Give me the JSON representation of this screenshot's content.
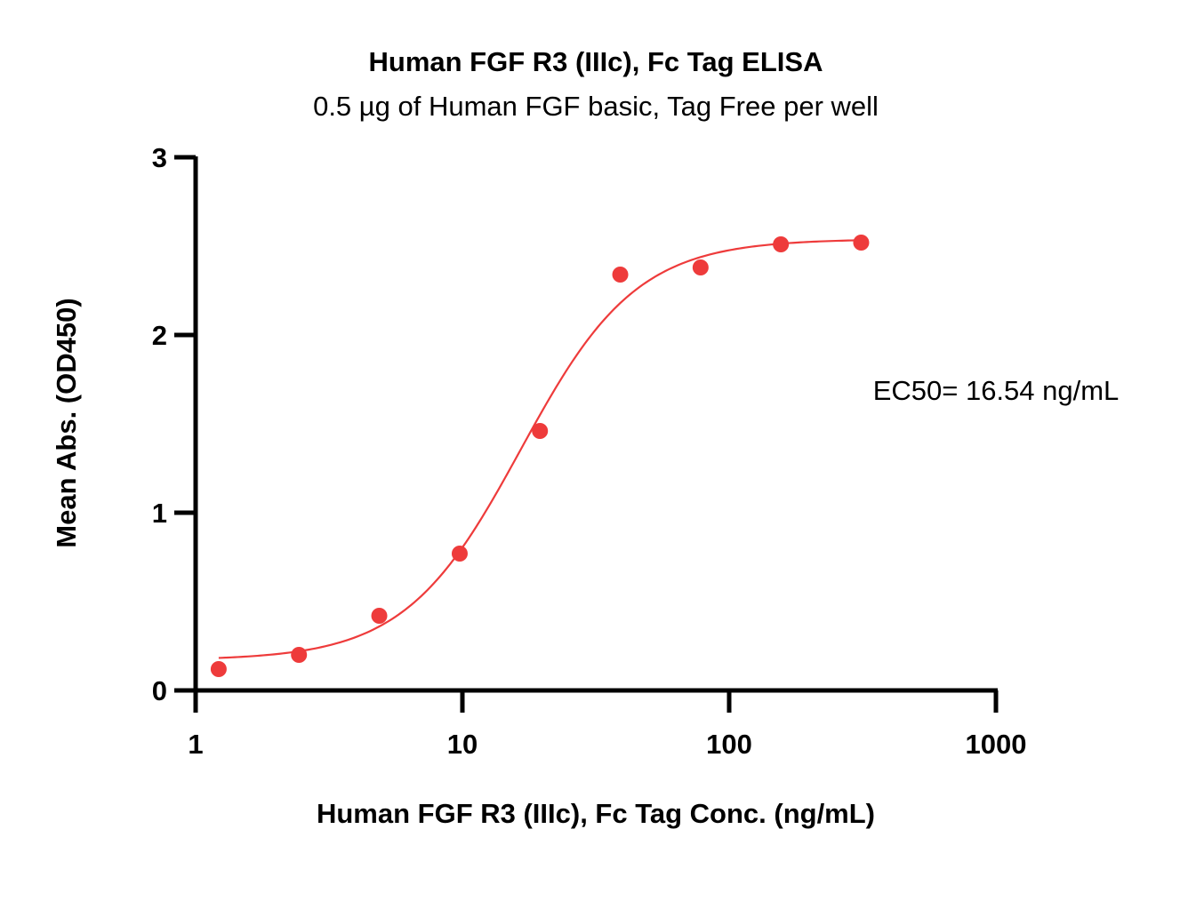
{
  "chart_data": {
    "type": "scatter",
    "title": "Human FGF R3 (IIIc), Fc Tag ELISA",
    "subtitle": "0.5 µg of Human FGF basic, Tag Free per well",
    "xlabel": "Human FGF R3 (IIIc), Fc Tag Conc. (ng/mL)",
    "ylabel": "Mean Abs. (OD450)",
    "xscale": "log",
    "xlim": [
      1,
      1000
    ],
    "ylim": [
      0,
      3
    ],
    "xticks": [
      "1",
      "10",
      "100",
      "1000"
    ],
    "yticks": [
      "0",
      "1",
      "2",
      "3"
    ],
    "grid": false,
    "color": "#ee3b3b",
    "series": [
      {
        "x": [
          1.22,
          2.44,
          4.88,
          9.77,
          19.53,
          39.06,
          78.13,
          156.25,
          312.5
        ],
        "y": [
          0.12,
          0.2,
          0.42,
          0.77,
          1.46,
          2.34,
          2.38,
          2.51,
          2.52
        ]
      }
    ],
    "fit": {
      "model": "4PL",
      "bottom": 0.17,
      "top": 2.54,
      "ec50": 16.54,
      "hill": 2.0,
      "x_range": [
        1.22,
        312.5
      ]
    },
    "annotation": "EC50= 16.54 ng/mL"
  }
}
